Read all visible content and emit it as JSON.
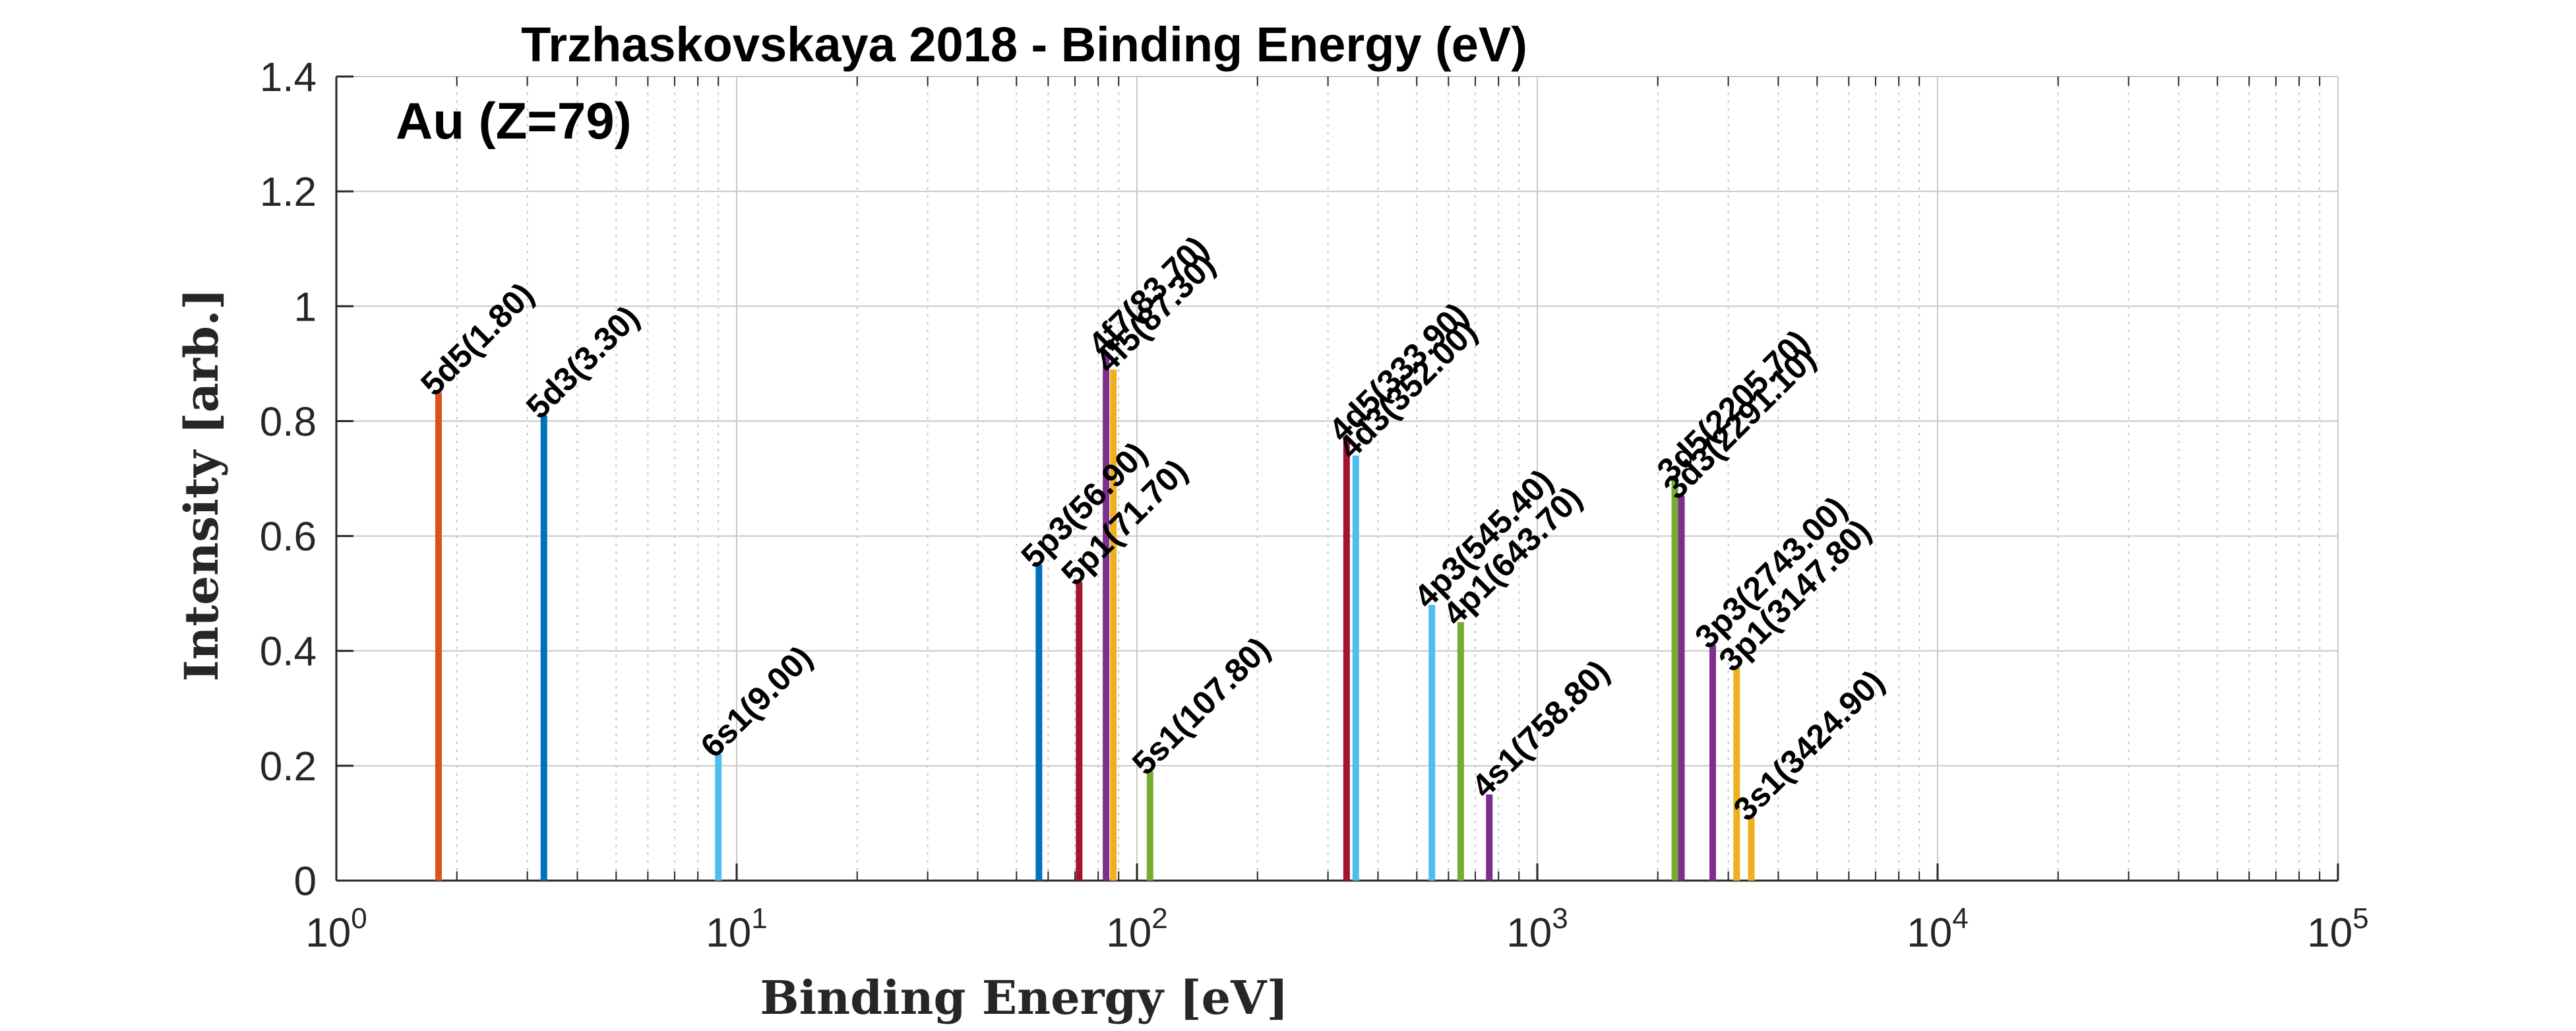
{
  "chart_data": {
    "type": "bar",
    "title": "Trzhaskovskaya 2018 - Binding Energy (eV)",
    "annotation": "Au (Z=79)",
    "xlabel": "Binding Energy [eV]",
    "ylabel": "Intensity [arb.]",
    "xscale": "log",
    "xlim": [
      1,
      100000
    ],
    "ylim": [
      0,
      1.4
    ],
    "grid": true,
    "xticks": [
      {
        "base": "10",
        "exp": "0"
      },
      {
        "base": "10",
        "exp": "1"
      },
      {
        "base": "10",
        "exp": "2"
      },
      {
        "base": "10",
        "exp": "3"
      },
      {
        "base": "10",
        "exp": "4"
      },
      {
        "base": "10",
        "exp": "5"
      }
    ],
    "yticks": [
      "0",
      "0.2",
      "0.4",
      "0.6",
      "0.8",
      "1",
      "1.2",
      "1.4"
    ],
    "lines": [
      {
        "label": "5d5(1.80)",
        "energy": 1.8,
        "intensity": 0.85,
        "color": "#D95319"
      },
      {
        "label": "5d3(3.30)",
        "energy": 3.3,
        "intensity": 0.81,
        "color": "#0072BD"
      },
      {
        "label": "6s1(9.00)",
        "energy": 9.0,
        "intensity": 0.22,
        "color": "#4DBEEE"
      },
      {
        "label": "5p3(56.90)",
        "energy": 56.9,
        "intensity": 0.55,
        "color": "#0072BD"
      },
      {
        "label": "5p1(71.70)",
        "energy": 71.7,
        "intensity": 0.52,
        "color": "#A2142F"
      },
      {
        "label": "4f7(83.70)",
        "energy": 83.7,
        "intensity": 0.92,
        "color": "#7E2F8E"
      },
      {
        "label": "4f5(87.30)",
        "energy": 87.3,
        "intensity": 0.89,
        "color": "#EDB120"
      },
      {
        "label": "5s1(107.80)",
        "energy": 107.8,
        "intensity": 0.19,
        "color": "#77AC30"
      },
      {
        "label": "4d5(333.90)",
        "energy": 333.9,
        "intensity": 0.77,
        "color": "#A2142F"
      },
      {
        "label": "4d3(352.00)",
        "energy": 352.0,
        "intensity": 0.74,
        "color": "#4DBEEE"
      },
      {
        "label": "4p3(545.40)",
        "energy": 545.4,
        "intensity": 0.48,
        "color": "#4DBEEE"
      },
      {
        "label": "4p1(643.70)",
        "energy": 643.7,
        "intensity": 0.45,
        "color": "#77AC30"
      },
      {
        "label": "4s1(758.80)",
        "energy": 758.8,
        "intensity": 0.15,
        "color": "#7E2F8E"
      },
      {
        "label": "3d5(2205.70)",
        "energy": 2205.7,
        "intensity": 0.7,
        "color": "#77AC30"
      },
      {
        "label": "3d3(2291.10)",
        "energy": 2291.1,
        "intensity": 0.67,
        "color": "#7E2F8E"
      },
      {
        "label": "3p3(2743.00)",
        "energy": 2743.0,
        "intensity": 0.41,
        "color": "#7E2F8E"
      },
      {
        "label": "3p1(3147.80)",
        "energy": 3147.8,
        "intensity": 0.37,
        "color": "#EDB120"
      },
      {
        "label": "3s1(3424.90)",
        "energy": 3424.9,
        "intensity": 0.11,
        "color": "#EDB120"
      }
    ]
  }
}
